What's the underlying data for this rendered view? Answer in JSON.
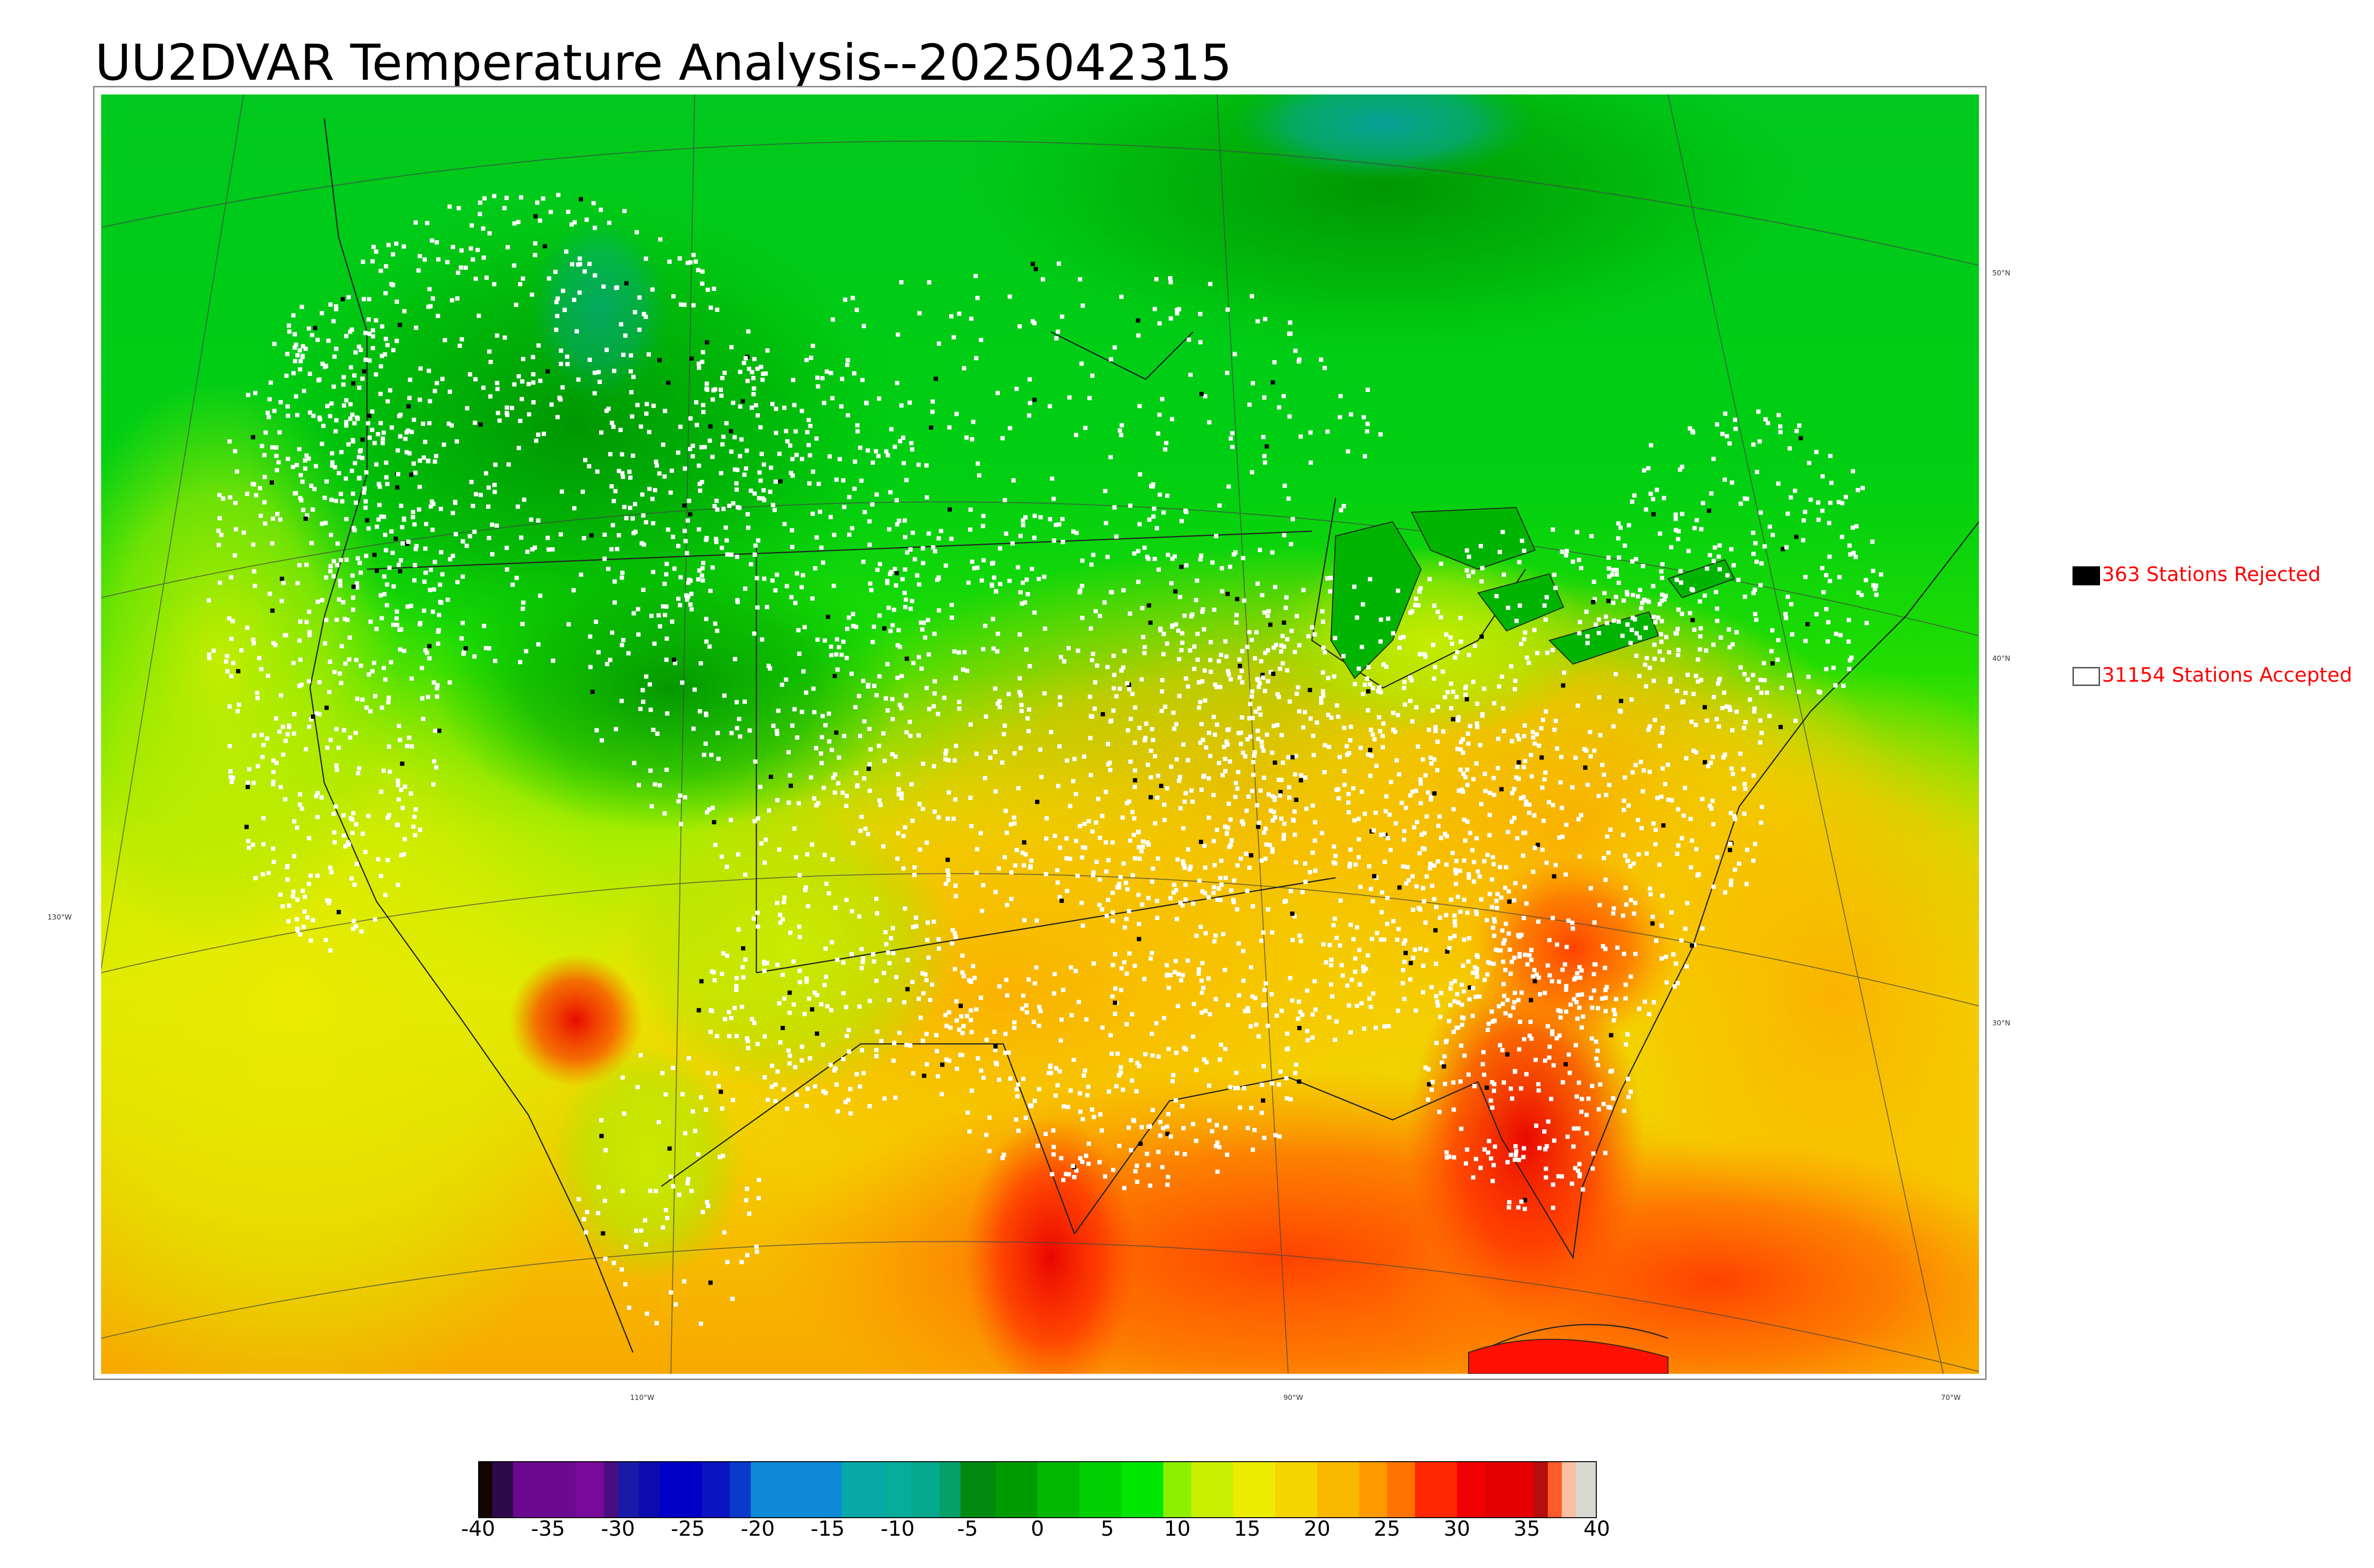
{
  "title": "UU2DVAR Temperature Analysis--2025042315",
  "legend": {
    "rejected": {
      "label": "363 Stations Rejected",
      "swatch_color": "#000000"
    },
    "accepted": {
      "label": "31154 Stations Accepted",
      "swatch_color": "#ffffff"
    }
  },
  "graticule": {
    "lat_labels": [
      "50°N",
      "40°N",
      "30°N"
    ],
    "lon_labels": [
      "130°W",
      "110°W",
      "90°W",
      "70°W"
    ]
  },
  "colorbar": {
    "ticks": [
      "-40",
      "-35",
      "-30",
      "-25",
      "-20",
      "-15",
      "-10",
      "-5",
      "0",
      "5",
      "10",
      "15",
      "20",
      "25",
      "30",
      "35",
      "40"
    ],
    "min": -40,
    "max": 40,
    "stops": [
      {
        "from": -40,
        "to": -39,
        "color": "#140505"
      },
      {
        "from": -39,
        "to": -37.5,
        "color": "#2d0a4a"
      },
      {
        "from": -37.5,
        "to": -33,
        "color": "#6b0a8f"
      },
      {
        "from": -33,
        "to": -31,
        "color": "#7a0a9c"
      },
      {
        "from": -31,
        "to": -30,
        "color": "#4a0d80"
      },
      {
        "from": -30,
        "to": -28.5,
        "color": "#1a1aa8"
      },
      {
        "from": -28.5,
        "to": -27,
        "color": "#0b0bb0"
      },
      {
        "from": -27,
        "to": -24,
        "color": "#0000c8"
      },
      {
        "from": -24,
        "to": -22,
        "color": "#0a14c0"
      },
      {
        "from": -22,
        "to": -20.5,
        "color": "#0a3acb"
      },
      {
        "from": -20.5,
        "to": -14,
        "color": "#0c8ad6"
      },
      {
        "from": -14,
        "to": -11,
        "color": "#08a8a8"
      },
      {
        "from": -11,
        "to": -9,
        "color": "#05ad9a"
      },
      {
        "from": -9,
        "to": -7,
        "color": "#04a88c"
      },
      {
        "from": -7,
        "to": -5.5,
        "color": "#059f68"
      },
      {
        "from": -5.5,
        "to": -3,
        "color": "#008a10"
      },
      {
        "from": -3,
        "to": 0,
        "color": "#009b00"
      },
      {
        "from": 0,
        "to": 3,
        "color": "#00b800"
      },
      {
        "from": 3,
        "to": 6,
        "color": "#00d000"
      },
      {
        "from": 6,
        "to": 9,
        "color": "#00e600"
      },
      {
        "from": 9,
        "to": 11,
        "color": "#8ef000"
      },
      {
        "from": 11,
        "to": 14,
        "color": "#c8f000"
      },
      {
        "from": 14,
        "to": 17,
        "color": "#ecec00"
      },
      {
        "from": 17,
        "to": 20,
        "color": "#f5d400"
      },
      {
        "from": 20,
        "to": 23,
        "color": "#fbb800"
      },
      {
        "from": 23,
        "to": 25,
        "color": "#ff9a00"
      },
      {
        "from": 25,
        "to": 27,
        "color": "#ff7400"
      },
      {
        "from": 27,
        "to": 30,
        "color": "#ff2800"
      },
      {
        "from": 30,
        "to": 32,
        "color": "#f00000"
      },
      {
        "from": 32,
        "to": 35.5,
        "color": "#e40000"
      },
      {
        "from": 35.5,
        "to": 36.5,
        "color": "#b40e0e"
      },
      {
        "from": 36.5,
        "to": 37.5,
        "color": "#ff5a2a"
      },
      {
        "from": 37.5,
        "to": 38.5,
        "color": "#f8c0a0"
      },
      {
        "from": 38.5,
        "to": 40,
        "color": "#d8d8d0"
      }
    ]
  }
}
